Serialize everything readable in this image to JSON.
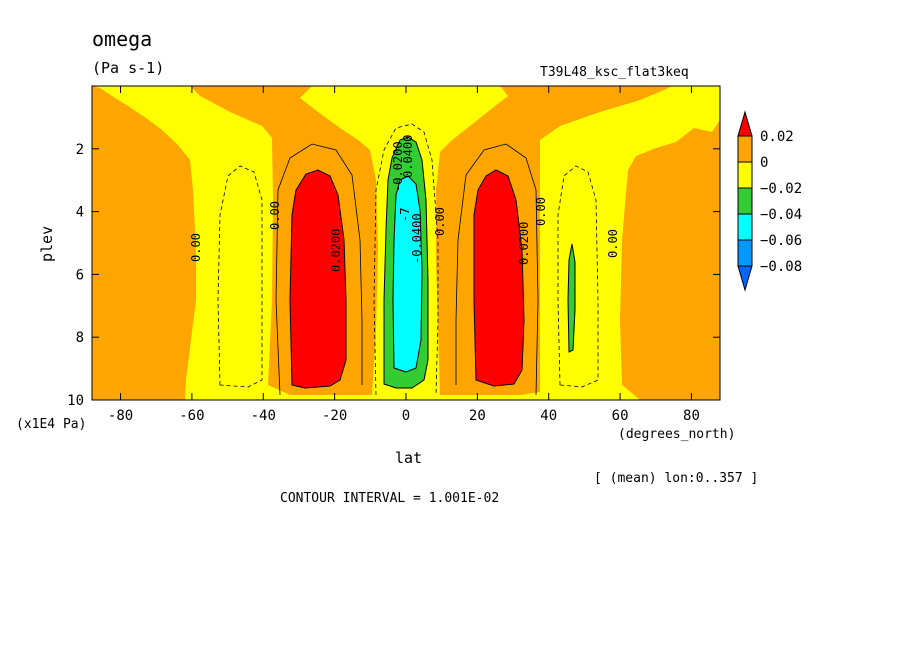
{
  "chart_data": {
    "type": "heatmap",
    "title": "omega",
    "units": "(Pa s-1)",
    "run_label": "T39L48_ksc_flat3keq",
    "xlabel": "lat",
    "x_units": "(degrees_north)",
    "ylabel": "plev",
    "y_units": "(x1E4 Pa)",
    "x_ticks": [
      "-80",
      "-60",
      "-40",
      "-20",
      "0",
      "20",
      "40",
      "60",
      "80"
    ],
    "y_ticks": [
      "2",
      "4",
      "6",
      "8",
      "10"
    ],
    "xlim": [
      -88,
      88
    ],
    "ylim": [
      0,
      10
    ],
    "y_reversed": true,
    "mean_note": "[ (mean) lon:0..357 ]",
    "contour_interval_text": "CONTOUR INTERVAL = 1.001E-02",
    "legend": {
      "labels": [
        "0.02",
        "0",
        "−0.02",
        "−0.04",
        "−0.06",
        "−0.08"
      ],
      "colors": [
        "#ff0000",
        "#ffa500",
        "#ffff00",
        "#33cc33",
        "#00ffff",
        "#0099ff",
        "#0066ff"
      ]
    },
    "contour_labels": [
      "0.00",
      "0.0200",
      "0.00",
      "-0.0200",
      "-0.0400",
      "0.0400",
      "-7",
      "0.00",
      "0.0200",
      "0.00",
      "0.00"
    ],
    "regions": [
      {
        "name": "red-south",
        "level": 0.02,
        "lat": [
          -32,
          -18
        ],
        "plev": [
          2.8,
          9.3
        ]
      },
      {
        "name": "red-north",
        "level": 0.02,
        "lat": [
          19,
          33
        ],
        "plev": [
          2.8,
          9.3
        ]
      },
      {
        "name": "green-equator",
        "level": -0.02,
        "lat": [
          -4,
          4
        ],
        "plev": [
          1.7,
          9.6
        ]
      },
      {
        "name": "cyan-equator",
        "level": -0.04,
        "lat": [
          -3,
          3
        ],
        "plev": [
          2.8,
          9.0
        ]
      },
      {
        "name": "green-north-sliver",
        "level": -0.02,
        "lat": [
          45,
          46.5
        ],
        "plev": [
          5.0,
          8.6
        ]
      }
    ]
  }
}
